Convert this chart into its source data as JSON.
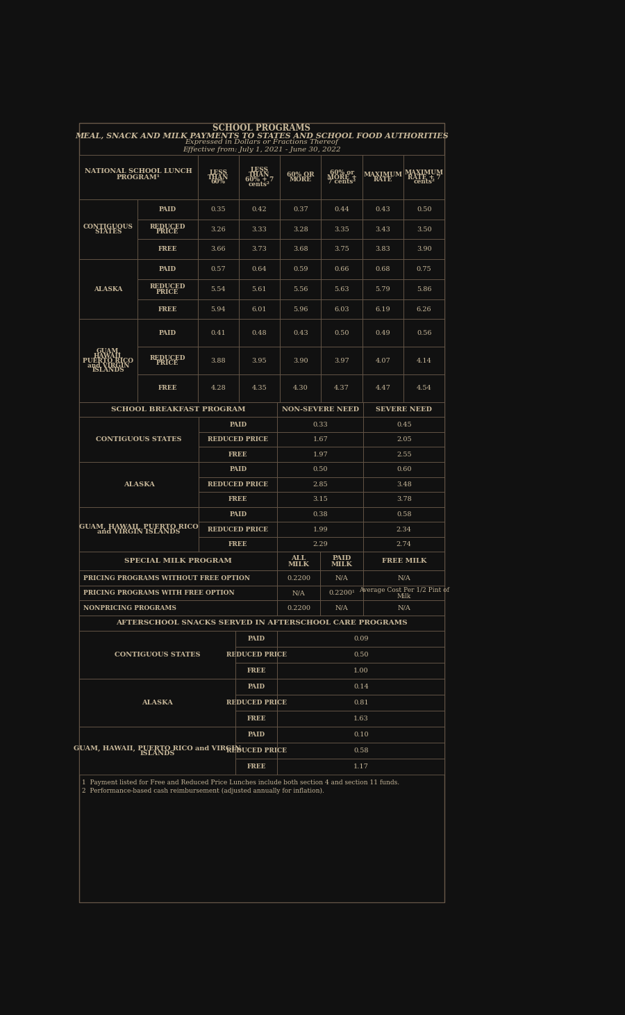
{
  "title1": "SCHOOL PROGRAMS",
  "title2": "MEAL, SNACK AND MILK PAYMENTS TO STATES AND SCHOOL FOOD AUTHORITIES",
  "title3": "Expressed in Dollars or Fractions Thereof",
  "title4": "Effective from: July 1, 2021 - June 30, 2022",
  "bg_color": "#111111",
  "text_color": "#c8b89a",
  "line_color": "#6a5a4a",
  "footnote1": "1  Payment listed for Free and Reduced Price Lunches include both section 4 and section 11 funds.",
  "footnote2": "2  Performance-based cash reimbursement (adjusted annually for inflation).",
  "nslp_col_headers": [
    "LESS\nTHAN\n60%",
    "LESS\nTHAN\n60% + 7\ncents²",
    "60% OR\nMORE",
    "60% or\nMORE +\n7 cents²",
    "MAXIMUM\nRATE",
    "MAXIMUM\nRATE + 7\ncents²"
  ],
  "nslp_data": {
    "CONTIGUOUS\nSTATES": {
      "PAID": [
        "0.35",
        "0.42",
        "0.37",
        "0.44",
        "0.43",
        "0.50"
      ],
      "REDUCED PRICE": [
        "3.26",
        "3.33",
        "3.28",
        "3.35",
        "3.43",
        "3.50"
      ],
      "FREE": [
        "3.66",
        "3.73",
        "3.68",
        "3.75",
        "3.83",
        "3.90"
      ]
    },
    "ALASKA": {
      "PAID": [
        "0.57",
        "0.64",
        "0.59",
        "0.66",
        "0.68",
        "0.75"
      ],
      "REDUCED PRICE": [
        "5.54",
        "5.61",
        "5.56",
        "5.63",
        "5.79",
        "5.86"
      ],
      "FREE": [
        "5.94",
        "6.01",
        "5.96",
        "6.03",
        "6.19",
        "6.26"
      ]
    },
    "GUAM,\nHAWAII,\nPUERTO RICO\nand VIRGIN\nISLANDS": {
      "PAID": [
        "0.41",
        "0.48",
        "0.43",
        "0.50",
        "0.49",
        "0.56"
      ],
      "REDUCED PRICE": [
        "3.88",
        "3.95",
        "3.90",
        "3.97",
        "4.07",
        "4.14"
      ],
      "FREE": [
        "4.28",
        "4.35",
        "4.30",
        "4.37",
        "4.47",
        "4.54"
      ]
    }
  },
  "sbp_data": {
    "CONTIGUOUS STATES": {
      "PAID": [
        "0.33",
        "0.45"
      ],
      "REDUCED PRICE": [
        "1.67",
        "2.05"
      ],
      "FREE": [
        "1.97",
        "2.55"
      ]
    },
    "ALASKA": {
      "PAID": [
        "0.50",
        "0.60"
      ],
      "REDUCED PRICE": [
        "2.85",
        "3.48"
      ],
      "FREE": [
        "3.15",
        "3.78"
      ]
    },
    "GUAM, HAWAII, PUERTO RICO\nand VIRGIN ISLANDS": {
      "PAID": [
        "0.38",
        "0.58"
      ],
      "REDUCED PRICE": [
        "1.99",
        "2.34"
      ],
      "FREE": [
        "2.29",
        "2.74"
      ]
    }
  },
  "smp_row1_label": "PRICING PROGRAMS WITHOUT FREE OPTION",
  "smp_row1": [
    "0.2200",
    "N/A",
    "N/A"
  ],
  "smp_row2_label": "PRICING PROGRAMS WITH FREE OPTION",
  "smp_row2": [
    "N/A",
    "0.2200¹",
    "Average Cost Per 1/2 Pint of\nMilk"
  ],
  "smp_row3_label": "NONPRICING PROGRAMS",
  "smp_row3": [
    "0.2200",
    "N/A",
    "N/A"
  ],
  "as_header": "AFTERSCHOOL SNACKS SERVED IN AFTERSCHOOL CARE PROGRAMS",
  "as_data": {
    "CONTIGUOUS STATES": {
      "PAID": "0.09",
      "REDUCED PRICE": "0.50",
      "FREE": "1.00"
    },
    "ALASKA": {
      "PAID": "0.14",
      "REDUCED PRICE": "0.81",
      "FREE": "1.63"
    },
    "GUAM, HAWAII, PUERTO RICO and VIRGIN\nISLANDS": {
      "PAID": "0.10",
      "REDUCED PRICE": "0.58",
      "FREE": "1.17"
    }
  }
}
